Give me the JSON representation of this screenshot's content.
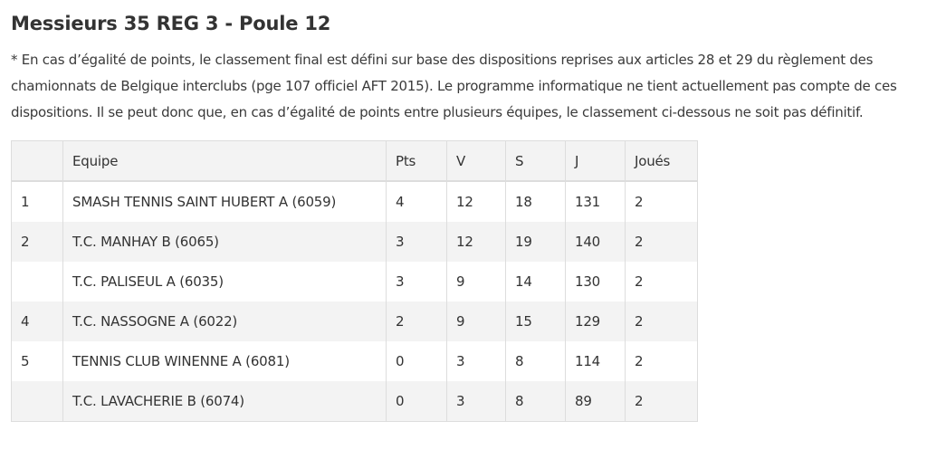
{
  "title": "Messieurs 35 REG 3 - Poule 12",
  "note": "* En cas d’égalité de points, le classement final est défini sur base des dispositions reprises aux articles 28 et 29 du règlement des chamionnats de Belgique interclubs (pge 107 officiel AFT 2015). Le programme informatique ne tient actuellement pas compte de ces dispositions. Il se peut donc que, en cas d’égalité de points entre plusieurs équipes, le classement ci-dessous ne soit pas définitif.",
  "table": {
    "headers": [
      "",
      "Equipe",
      "Pts",
      "V",
      "S",
      "J",
      "Joués"
    ],
    "rows": [
      {
        "rank": "1",
        "team": "SMASH TENNIS SAINT HUBERT A (6059)",
        "pts": "4",
        "v": "12",
        "s": "18",
        "j": "131",
        "played": "2"
      },
      {
        "rank": "2",
        "team": "T.C. MANHAY B (6065)",
        "pts": "3",
        "v": "12",
        "s": "19",
        "j": "140",
        "played": "2"
      },
      {
        "rank": "",
        "team": "T.C. PALISEUL A (6035)",
        "pts": "3",
        "v": "9",
        "s": "14",
        "j": "130",
        "played": "2"
      },
      {
        "rank": "4",
        "team": "T.C. NASSOGNE A (6022)",
        "pts": "2",
        "v": "9",
        "s": "15",
        "j": "129",
        "played": "2"
      },
      {
        "rank": "5",
        "team": "TENNIS CLUB WINENNE A (6081)",
        "pts": "0",
        "v": "3",
        "s": "8",
        "j": "114",
        "played": "2"
      },
      {
        "rank": "",
        "team": "T.C. LAVACHERIE B (6074)",
        "pts": "0",
        "v": "3",
        "s": "8",
        "j": "89",
        "played": "2"
      }
    ]
  }
}
